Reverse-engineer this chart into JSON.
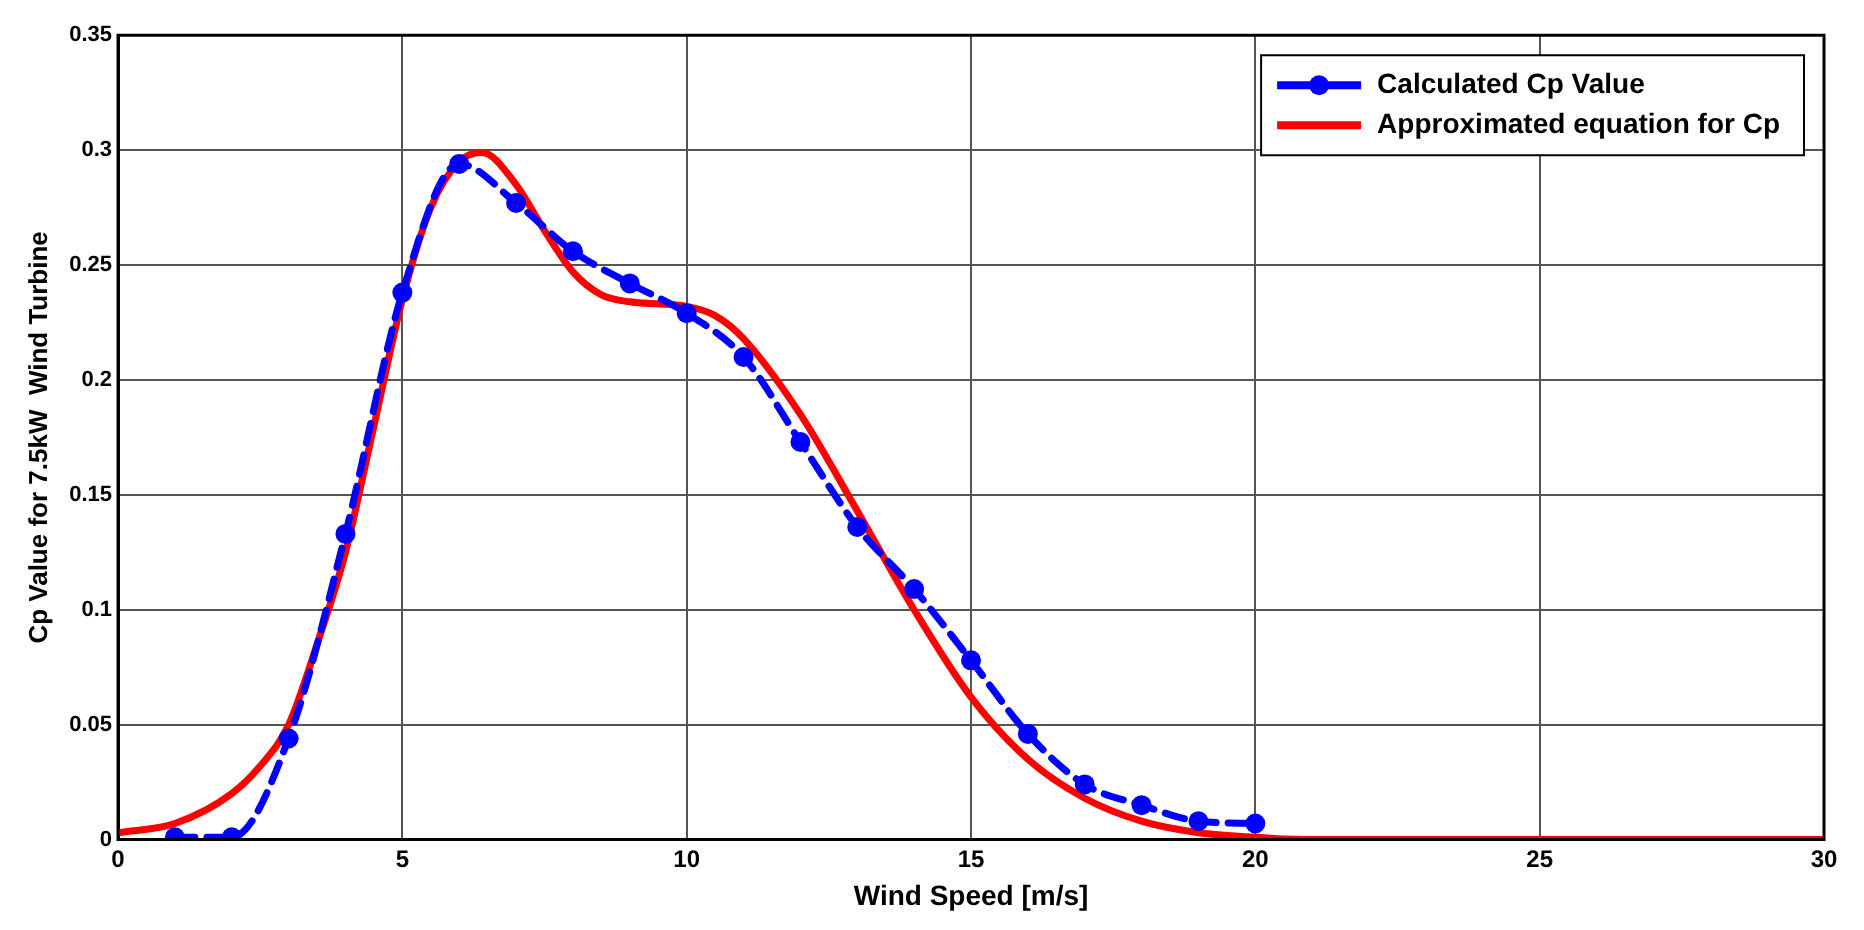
{
  "chart_data": {
    "type": "line",
    "xlabel": "Wind Speed [m/s]",
    "ylabel": "Cp Value for 7.5kW  Wind Turbine",
    "xlim": [
      0,
      30
    ],
    "ylim": [
      0,
      0.35
    ],
    "xticks": [
      0,
      5,
      10,
      15,
      20,
      25,
      30
    ],
    "yticks": [
      0,
      0.05,
      0.1,
      0.15,
      0.2,
      0.25,
      0.3,
      0.35
    ],
    "grid": true,
    "legend": "top right",
    "series": [
      {
        "name": "Calculated Cp Value",
        "color": "#0000ff",
        "marker": "circle",
        "line_style": "dashed",
        "x": [
          1,
          2,
          3,
          4,
          5,
          6,
          7,
          8,
          9,
          10,
          11,
          12,
          13,
          14,
          15,
          16,
          17,
          18,
          19,
          20
        ],
        "values": [
          0.001,
          0.001,
          0.044,
          0.133,
          0.238,
          0.294,
          0.277,
          0.256,
          0.242,
          0.229,
          0.21,
          0.173,
          0.136,
          0.109,
          0.078,
          0.046,
          0.024,
          0.015,
          0.008,
          0.007
        ]
      },
      {
        "name": "Approximated equation for Cp",
        "color": "#ff0000",
        "marker": "none",
        "line_style": "solid",
        "x": [
          0,
          1,
          2,
          2.5,
          3,
          3.5,
          4,
          4.5,
          5,
          5.5,
          6,
          6.4,
          7,
          7.5,
          8,
          8.5,
          9,
          10,
          10.5,
          11,
          12,
          13,
          14,
          15,
          16,
          17,
          18,
          19,
          20,
          21,
          25,
          30
        ],
        "values": [
          0.003,
          0.007,
          0.02,
          0.032,
          0.05,
          0.085,
          0.125,
          0.18,
          0.235,
          0.275,
          0.295,
          0.299,
          0.285,
          0.265,
          0.247,
          0.237,
          0.234,
          0.232,
          0.228,
          0.218,
          0.185,
          0.143,
          0.1,
          0.062,
          0.035,
          0.018,
          0.008,
          0.003,
          0.001,
          0,
          0,
          0
        ]
      }
    ]
  }
}
